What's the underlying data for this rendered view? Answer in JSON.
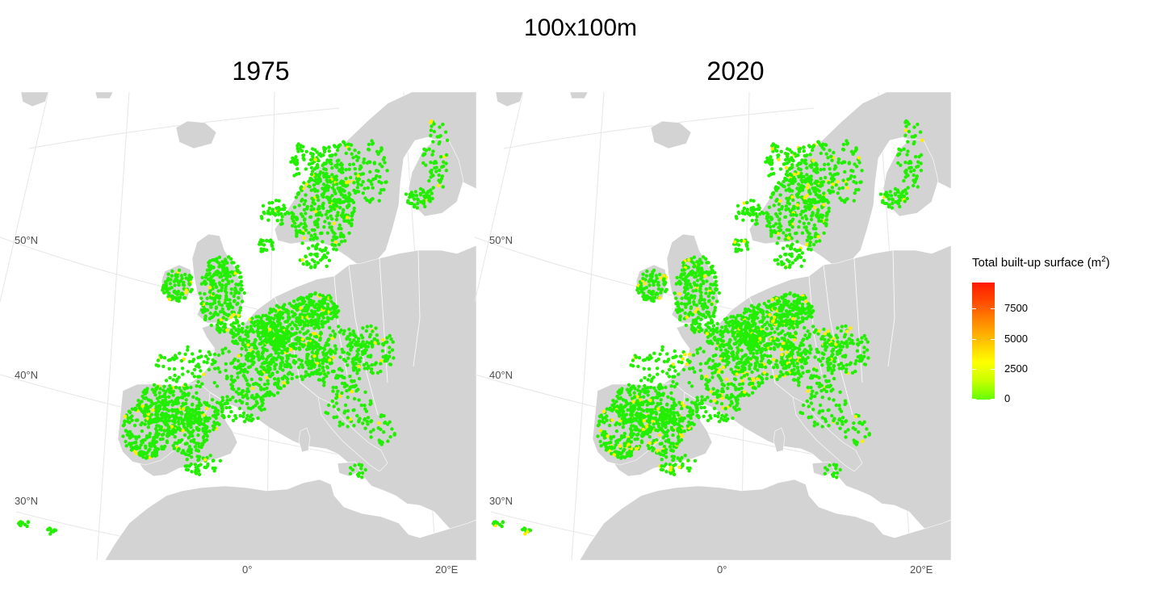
{
  "title": "100x100m",
  "panels": [
    {
      "title": "1975",
      "year": 1975
    },
    {
      "title": "2020",
      "year": 2020
    }
  ],
  "lat_labels": [
    "50°N",
    "40°N",
    "30°N"
  ],
  "lon_labels": [
    "0°",
    "20°E"
  ],
  "legend": {
    "title_prefix": "Total built-up surface (m",
    "title_sup": "2",
    "title_suffix": ")",
    "ticks": [
      "7500",
      "5000",
      "2500",
      "0"
    ],
    "tick_values": [
      7500,
      5000,
      2500,
      0
    ],
    "max_value": 10000,
    "colors": [
      "#66ff00",
      "#ccff00",
      "#ffff00",
      "#ffc800",
      "#ff8c00",
      "#ff4a00",
      "#ff1a00"
    ]
  },
  "colors": {
    "land": "#d3d3d3",
    "sea": "#ffffff",
    "graticule": "#e6e6e6",
    "low_value_point": "#22ee00",
    "mid_value_point": "#ffee00"
  }
}
